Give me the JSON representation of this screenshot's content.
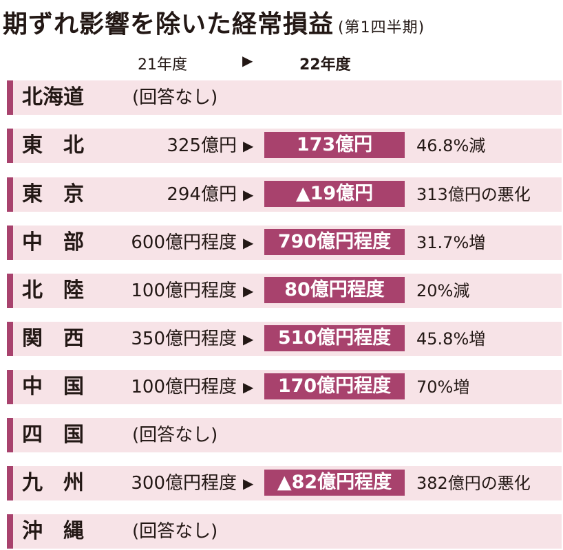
{
  "title": "期ずれ影響を除いた経常損益",
  "subtitle": "(第1四半期)",
  "header": {
    "prev": "21年度",
    "arrow": "▶",
    "next": "22年度"
  },
  "rows": [
    {
      "region": "北海道",
      "no_answer": "(回答なし)",
      "prev": "",
      "arrow": "",
      "next": "",
      "change": ""
    },
    {
      "region": "東　北",
      "no_answer": "",
      "prev": "325億円",
      "arrow": "▶",
      "next": "173億円",
      "change": "46.8%減"
    },
    {
      "region": "東　京",
      "no_answer": "",
      "prev": "294億円",
      "arrow": "▶",
      "next": "▲19億円",
      "change": "313億円の悪化"
    },
    {
      "region": "中　部",
      "no_answer": "",
      "prev": "600億円程度",
      "arrow": "▶",
      "next": "790億円程度",
      "change": "31.7%増"
    },
    {
      "region": "北　陸",
      "no_answer": "",
      "prev": "100億円程度",
      "arrow": "▶",
      "next": "80億円程度",
      "change": "20%減"
    },
    {
      "region": "関　西",
      "no_answer": "",
      "prev": "350億円程度",
      "arrow": "▶",
      "next": "510億円程度",
      "change": "45.8%増"
    },
    {
      "region": "中　国",
      "no_answer": "",
      "prev": "100億円程度",
      "arrow": "▶",
      "next": "170億円程度",
      "change": "70%増"
    },
    {
      "region": "四　国",
      "no_answer": "(回答なし)",
      "prev": "",
      "arrow": "",
      "next": "",
      "change": ""
    },
    {
      "region": "九　州",
      "no_answer": "",
      "prev": "300億円程度",
      "arrow": "▶",
      "next": "▲82億円程度",
      "change": "382億円の悪化"
    },
    {
      "region": "沖　縄",
      "no_answer": "(回答なし)",
      "prev": "",
      "arrow": "",
      "next": "",
      "change": ""
    }
  ],
  "colors": {
    "accent": "#a8426d",
    "row_bg": "#f7e3e7",
    "text": "#231815"
  }
}
